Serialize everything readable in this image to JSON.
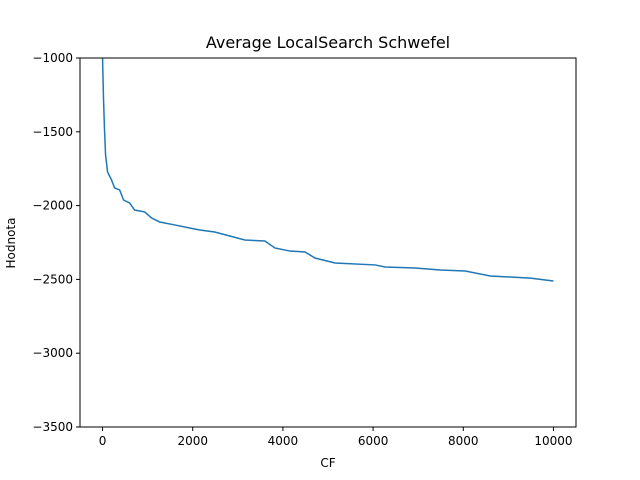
{
  "chart_data": {
    "type": "line",
    "title": "Average LocalSearch Schwefel",
    "xlabel": "CF",
    "ylabel": "Hodnota",
    "x": [
      0,
      22,
      44,
      67,
      111,
      200,
      267,
      378,
      467,
      600,
      711,
      933,
      1089,
      1267,
      1600,
      1933,
      2156,
      2489,
      2822,
      3156,
      3600,
      3822,
      4156,
      4489,
      4711,
      5156,
      6044,
      6267,
      6933,
      7489,
      8044,
      8600,
      9489,
      10000
    ],
    "series": [
      {
        "name": "Average",
        "color": "#1f77b4",
        "values": [
          -1000,
          -1285,
          -1488,
          -1657,
          -1772,
          -1827,
          -1880,
          -1894,
          -1962,
          -1982,
          -2030,
          -2043,
          -2084,
          -2111,
          -2131,
          -2152,
          -2165,
          -2179,
          -2206,
          -2233,
          -2240,
          -2287,
          -2308,
          -2314,
          -2355,
          -2389,
          -2402,
          -2416,
          -2423,
          -2436,
          -2443,
          -2477,
          -2491,
          -2511
        ]
      }
    ],
    "xlim": [
      -500,
      10500
    ],
    "xticks": [
      0,
      2000,
      4000,
      6000,
      8000,
      10000
    ],
    "ylim": [
      -3500,
      -1000
    ],
    "yticks": [
      {
        "value": -3500,
        "label": "−3500"
      },
      {
        "value": -3000,
        "label": "−3000"
      },
      {
        "value": -2500,
        "label": "−2500"
      },
      {
        "value": -2000,
        "label": "−2000"
      },
      {
        "value": -1500,
        "label": "−1500"
      },
      {
        "value": -1000,
        "label": "−1000"
      }
    ],
    "grid": false
  }
}
